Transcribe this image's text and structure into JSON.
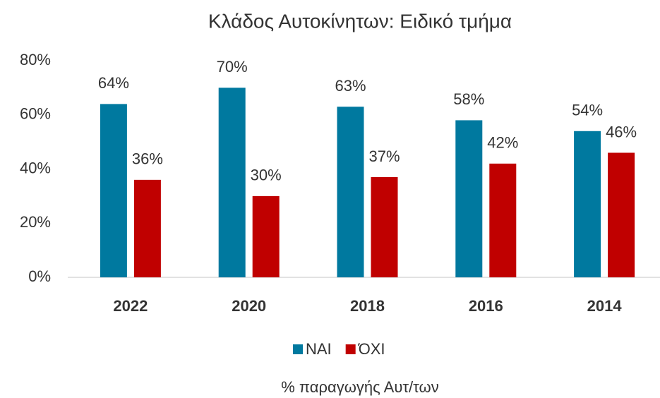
{
  "chart_data": {
    "type": "bar",
    "title": "Κλάδος Αυτοκίνητων: Ειδικό τμήμα",
    "x_label": "% παραγωγής Αυτ/των",
    "categories": [
      "2022",
      "2020",
      "2018",
      "2016",
      "2014"
    ],
    "series": [
      {
        "name": "ΝΑΙ",
        "color": "#00799f",
        "values": [
          64,
          70,
          63,
          58,
          54
        ],
        "value_labels": [
          "64%",
          "70%",
          "63%",
          "58%",
          "54%"
        ]
      },
      {
        "name": "ΌΧΙ",
        "color": "#c00000",
        "values": [
          36,
          30,
          37,
          42,
          46
        ],
        "value_labels": [
          "36%",
          "30%",
          "37%",
          "42%",
          "46%"
        ]
      }
    ],
    "ylim": [
      0,
      80
    ],
    "yticks": [
      {
        "value": 0,
        "label": "0%"
      },
      {
        "value": 20,
        "label": "20%"
      },
      {
        "value": 40,
        "label": "40%"
      },
      {
        "value": 60,
        "label": "60%"
      },
      {
        "value": 80,
        "label": "80%"
      }
    ],
    "grid": false,
    "legend": "bottom"
  }
}
